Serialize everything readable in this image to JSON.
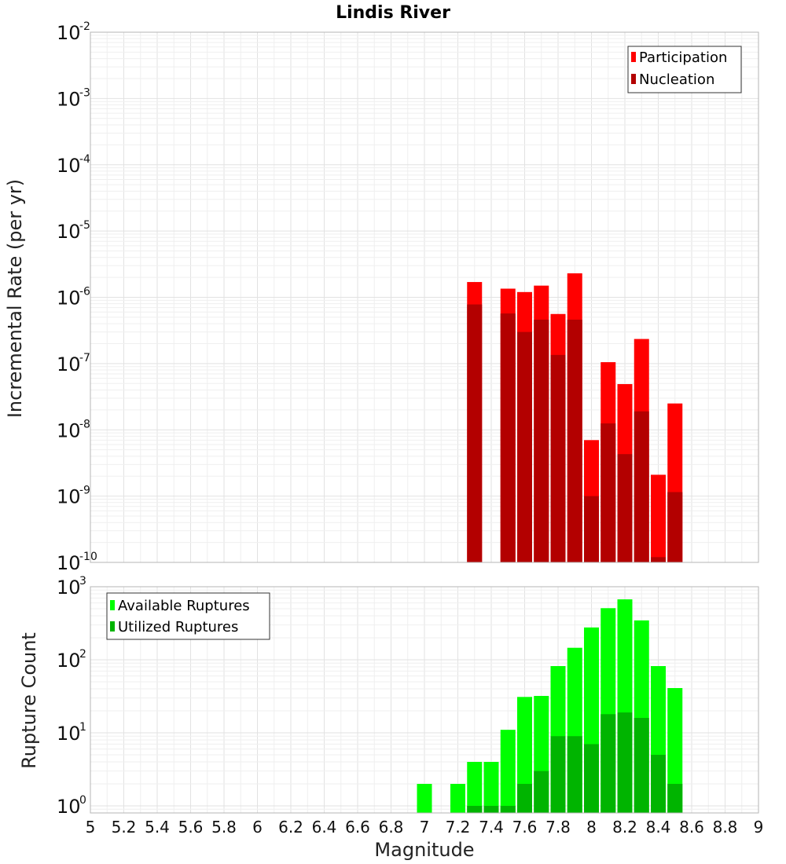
{
  "chart_data": [
    {
      "type": "bar",
      "title": "Lindis River",
      "xlabel": "",
      "ylabel": "Incremental Rate (per yr)",
      "xlim": [
        5,
        9
      ],
      "ylim": [
        1e-10,
        0.01
      ],
      "yscale": "log",
      "grid": true,
      "legend_position": "top-right",
      "x": [
        7.3,
        7.5,
        7.6,
        7.7,
        7.8,
        7.9,
        8.0,
        8.1,
        8.2,
        8.3,
        8.4,
        8.5
      ],
      "series": [
        {
          "name": "Participation",
          "color": "#ff0000",
          "values": [
            1.7e-06,
            1.35e-06,
            1.2e-06,
            1.5e-06,
            5.6e-07,
            2.3e-06,
            7e-09,
            1.05e-07,
            4.9e-08,
            2.35e-07,
            2.1e-09,
            2.5e-08
          ]
        },
        {
          "name": "Nucleation",
          "color": "#b30000",
          "values": [
            7.8e-07,
            5.7e-07,
            3e-07,
            4.6e-07,
            1.35e-07,
            4.6e-07,
            1e-09,
            1.25e-08,
            4.3e-09,
            1.9e-08,
            1.2e-10,
            1.15e-09
          ]
        }
      ]
    },
    {
      "type": "bar",
      "title": "",
      "xlabel": "Magnitude",
      "ylabel": "Rupture Count",
      "xlim": [
        5,
        9
      ],
      "ylim": [
        0.8,
        1000
      ],
      "yscale": "log",
      "grid": true,
      "legend_position": "top-left",
      "x": [
        7.0,
        7.2,
        7.3,
        7.4,
        7.5,
        7.6,
        7.7,
        7.8,
        7.9,
        8.0,
        8.1,
        8.2,
        8.3,
        8.4,
        8.5
      ],
      "series": [
        {
          "name": "Available Ruptures",
          "color": "#00ff00",
          "values": [
            2,
            2,
            4,
            4,
            11,
            31,
            32,
            82,
            146,
            277,
            509,
            672,
            346,
            82,
            41
          ]
        },
        {
          "name": "Utilized Ruptures",
          "color": "#00b400",
          "values": [
            0,
            0,
            1,
            1,
            1,
            2,
            3,
            9,
            9,
            7,
            18,
            19,
            16,
            5,
            2
          ]
        }
      ]
    }
  ],
  "x_ticks": [
    "5",
    "5.2",
    "5.4",
    "5.6",
    "5.8",
    "6",
    "6.2",
    "6.4",
    "6.6",
    "6.8",
    "7",
    "7.2",
    "7.4",
    "7.6",
    "7.8",
    "8",
    "8.2",
    "8.4",
    "8.6",
    "8.8",
    "9"
  ],
  "top_y_ticks": [
    {
      "base": "10",
      "exp": "-10"
    },
    {
      "base": "10",
      "exp": "-9"
    },
    {
      "base": "10",
      "exp": "-8"
    },
    {
      "base": "10",
      "exp": "-7"
    },
    {
      "base": "10",
      "exp": "-6"
    },
    {
      "base": "10",
      "exp": "-5"
    },
    {
      "base": "10",
      "exp": "-4"
    },
    {
      "base": "10",
      "exp": "-3"
    },
    {
      "base": "10",
      "exp": "-2"
    }
  ],
  "bottom_y_ticks": [
    {
      "base": "10",
      "exp": "0"
    },
    {
      "base": "10",
      "exp": "1"
    },
    {
      "base": "10",
      "exp": "2"
    },
    {
      "base": "10",
      "exp": "3"
    }
  ]
}
